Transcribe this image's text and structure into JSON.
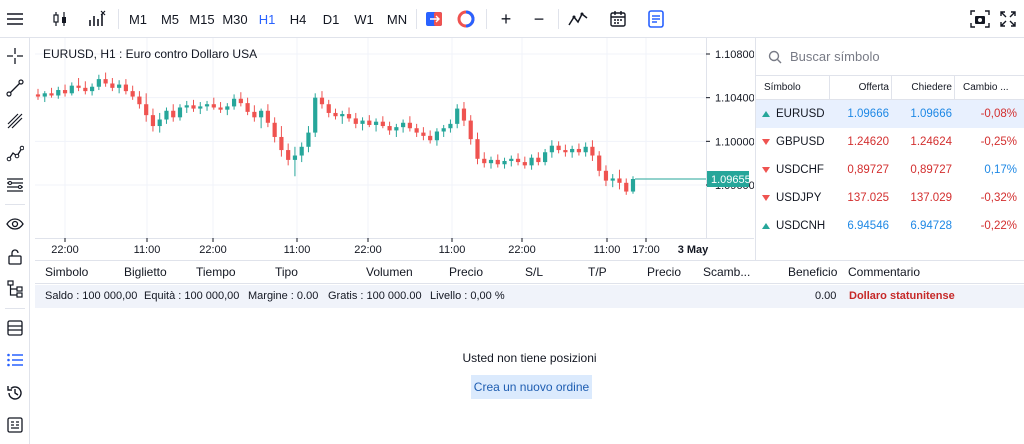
{
  "toolbar": {
    "timeframes": [
      "M1",
      "M5",
      "M15",
      "M30",
      "H1",
      "H4",
      "D1",
      "W1",
      "MN"
    ],
    "active_timeframe": "H1",
    "zoom_in": "+",
    "zoom_out": "−"
  },
  "chart": {
    "title": "EURUSD, H1 : Euro contro Dollaro USA",
    "price_labels": [
      "1.10800",
      "1.10400",
      "1.10000",
      "1.09600"
    ],
    "current_price": "1.09655",
    "time_labels": [
      "22:00",
      "11:00",
      "22:00",
      "11:00",
      "22:00",
      "11:00",
      "22:00",
      "11:00",
      "17:00",
      "3 May"
    ],
    "colors": {
      "up": "#26a69a",
      "down": "#ef5350",
      "last_price": "#26a69a"
    }
  },
  "chart_data": {
    "type": "candlestick",
    "symbol": "EURUSD",
    "timeframe": "H1",
    "title": "EURUSD, H1 : Euro contro Dollaro USA",
    "y_ticks": [
      1.108,
      1.104,
      1.1,
      1.096
    ],
    "x_ticks": [
      "22:00",
      "11:00",
      "22:00",
      "11:00",
      "22:00",
      "11:00",
      "22:00",
      "11:00",
      "17:00",
      "3 May"
    ],
    "last_price": 1.09655,
    "ohlc": [
      [
        1.1043,
        1.1048,
        1.1038,
        1.1041
      ],
      [
        1.1041,
        1.1046,
        1.1036,
        1.1044
      ],
      [
        1.1044,
        1.1049,
        1.104,
        1.1042
      ],
      [
        1.1042,
        1.105,
        1.1039,
        1.1047
      ],
      [
        1.1047,
        1.1052,
        1.1041,
        1.1044
      ],
      [
        1.1044,
        1.1054,
        1.1042,
        1.1051
      ],
      [
        1.1051,
        1.1058,
        1.1046,
        1.1049
      ],
      [
        1.1049,
        1.1055,
        1.1043,
        1.1046
      ],
      [
        1.1046,
        1.1053,
        1.1042,
        1.105
      ],
      [
        1.105,
        1.1061,
        1.1047,
        1.1057
      ],
      [
        1.1057,
        1.1063,
        1.105,
        1.1053
      ],
      [
        1.1053,
        1.1058,
        1.1046,
        1.1049
      ],
      [
        1.1049,
        1.1056,
        1.1044,
        1.1052
      ],
      [
        1.1052,
        1.1057,
        1.1043,
        1.1046
      ],
      [
        1.1046,
        1.1051,
        1.1038,
        1.1041
      ],
      [
        1.1041,
        1.1046,
        1.103,
        1.1034
      ],
      [
        1.1034,
        1.1044,
        1.1018,
        1.1024
      ],
      [
        1.1024,
        1.103,
        1.1009,
        1.1014
      ],
      [
        1.1014,
        1.1026,
        1.1008,
        1.102
      ],
      [
        1.102,
        1.1031,
        1.1016,
        1.1028
      ],
      [
        1.1028,
        1.1034,
        1.1018,
        1.1022
      ],
      [
        1.1022,
        1.1034,
        1.1019,
        1.1031
      ],
      [
        1.1031,
        1.1037,
        1.1026,
        1.1033
      ],
      [
        1.1033,
        1.1038,
        1.1027,
        1.103
      ],
      [
        1.103,
        1.1036,
        1.1025,
        1.1032
      ],
      [
        1.1032,
        1.1037,
        1.1028,
        1.1034
      ],
      [
        1.1034,
        1.104,
        1.1029,
        1.1031
      ],
      [
        1.1031,
        1.1036,
        1.1026,
        1.1029
      ],
      [
        1.1029,
        1.1035,
        1.1024,
        1.1032
      ],
      [
        1.1032,
        1.1043,
        1.1029,
        1.1039
      ],
      [
        1.1039,
        1.1045,
        1.1032,
        1.1035
      ],
      [
        1.1035,
        1.104,
        1.1024,
        1.1027
      ],
      [
        1.1027,
        1.1033,
        1.1018,
        1.1022
      ],
      [
        1.1022,
        1.103,
        1.1012,
        1.1028
      ],
      [
        1.1028,
        1.1034,
        1.1013,
        1.1017
      ],
      [
        1.1017,
        1.1022,
        1.0999,
        1.1004
      ],
      [
        1.1004,
        1.1014,
        1.0986,
        1.0992
      ],
      [
        1.0992,
        1.0998,
        1.0978,
        1.0983
      ],
      [
        1.0983,
        1.0995,
        1.0968,
        1.0987
      ],
      [
        1.0987,
        1.0999,
        1.0981,
        1.0995
      ],
      [
        1.0995,
        1.1014,
        1.099,
        1.1008
      ],
      [
        1.1008,
        1.1044,
        1.1004,
        1.104
      ],
      [
        1.104,
        1.1046,
        1.103,
        1.1034
      ],
      [
        1.1034,
        1.1038,
        1.1022,
        1.1026
      ],
      [
        1.1026,
        1.103,
        1.102,
        1.1023
      ],
      [
        1.1023,
        1.1028,
        1.1016,
        1.1025
      ],
      [
        1.1025,
        1.1031,
        1.1018,
        1.1021
      ],
      [
        1.1021,
        1.1026,
        1.1012,
        1.1016
      ],
      [
        1.1016,
        1.1022,
        1.101,
        1.1019
      ],
      [
        1.1019,
        1.1024,
        1.1013,
        1.1015
      ],
      [
        1.1015,
        1.1021,
        1.1009,
        1.1018
      ],
      [
        1.1018,
        1.1023,
        1.1012,
        1.1014
      ],
      [
        1.1014,
        1.1018,
        1.1006,
        1.101
      ],
      [
        1.101,
        1.1016,
        1.1004,
        1.1013
      ],
      [
        1.1013,
        1.102,
        1.1008,
        1.1017
      ],
      [
        1.1017,
        1.1023,
        1.1009,
        1.1012
      ],
      [
        1.1012,
        1.1016,
        1.1004,
        1.1008
      ],
      [
        1.1008,
        1.1013,
        1.1001,
        1.1005
      ],
      [
        1.1005,
        1.101,
        1.0998,
        1.1001
      ],
      [
        1.1001,
        1.1012,
        1.0996,
        1.1009
      ],
      [
        1.1009,
        1.1015,
        1.1004,
        1.1012
      ],
      [
        1.1012,
        1.102,
        1.1008,
        1.1016
      ],
      [
        1.1016,
        1.1034,
        1.1012,
        1.103
      ],
      [
        1.103,
        1.1036,
        1.1014,
        1.1019
      ],
      [
        1.1019,
        1.1024,
        1.0997,
        1.1002
      ],
      [
        1.1002,
        1.1008,
        1.0979,
        1.0984
      ],
      [
        1.0984,
        1.099,
        1.0976,
        1.098
      ],
      [
        1.098,
        1.0986,
        1.0975,
        1.0983
      ],
      [
        1.0983,
        1.0988,
        1.0976,
        1.0979
      ],
      [
        1.0979,
        1.0985,
        1.0975,
        1.0982
      ],
      [
        1.0982,
        1.0987,
        1.0977,
        1.0984
      ],
      [
        1.0984,
        1.0989,
        1.0978,
        1.0981
      ],
      [
        1.0981,
        1.0986,
        1.0975,
        1.0978
      ],
      [
        1.0978,
        1.0988,
        1.0974,
        1.0985
      ],
      [
        1.0985,
        1.099,
        1.0978,
        1.0981
      ],
      [
        1.0981,
        1.0993,
        1.0978,
        1.099
      ],
      [
        1.099,
        1.1001,
        1.0985,
        1.0996
      ],
      [
        1.0996,
        1.1,
        1.0989,
        1.0992
      ],
      [
        1.0992,
        1.0997,
        1.0986,
        1.099
      ],
      [
        1.099,
        1.0996,
        1.0985,
        1.0993
      ],
      [
        1.0993,
        1.0998,
        1.0987,
        1.099
      ],
      [
        1.099,
        1.0999,
        1.0986,
        1.0995
      ],
      [
        1.0995,
        1.1001,
        1.0982,
        1.0987
      ],
      [
        1.0987,
        1.0991,
        1.0968,
        1.0973
      ],
      [
        1.0973,
        1.0978,
        1.0959,
        1.0964
      ],
      [
        1.0964,
        1.097,
        1.0958,
        1.0966
      ],
      [
        1.0966,
        1.0974,
        1.0956,
        1.0962
      ],
      [
        1.0962,
        1.0966,
        1.0951,
        1.0954
      ],
      [
        1.0954,
        1.0968,
        1.0952,
        1.09655
      ]
    ]
  },
  "watchlist": {
    "search_placeholder": "Buscar símbolo",
    "columns": [
      "Símbolo",
      "Offerta",
      "Chiedere",
      "Cambio ..."
    ],
    "rows": [
      {
        "symbol": "EURUSD",
        "bid": "1.09666",
        "ask": "1.09666",
        "change": "-0,08%",
        "dir": "up"
      },
      {
        "symbol": "GBPUSD",
        "bid": "1.24620",
        "ask": "1.24624",
        "change": "-0,25%",
        "dir": "down"
      },
      {
        "symbol": "USDCHF",
        "bid": "0,89727",
        "ask": "0,89727",
        "change": "0,17%",
        "dir": "down"
      },
      {
        "symbol": "USDJPY",
        "bid": "137.025",
        "ask": "137.029",
        "change": "-0,32%",
        "dir": "down"
      },
      {
        "symbol": "USDCNH",
        "bid": "6.94546",
        "ask": "6.94728",
        "change": "-0,22%",
        "dir": "up"
      }
    ],
    "colors": {
      "up": "#1e88e5",
      "down": "#d32f2f",
      "selected_bg": "#e8f0fe"
    }
  },
  "positions": {
    "columns": [
      "Simbolo",
      "Biglietto",
      "Tiempo",
      "Tipo",
      "Volumen",
      "Precio",
      "S/L",
      "T/P",
      "Precio",
      "Scamb...",
      "Beneficio",
      "Commentario"
    ],
    "balance_items": [
      "Saldo : 100 000,00",
      "Equità : 100 000,00",
      "Margine : 0.00",
      "Gratis : 100 000.00",
      "Livello : 0,00 %"
    ],
    "balance_profit": "0.00",
    "balance_comment": "Dollaro statunitense",
    "empty_message": "Usted non tiene posizioni",
    "new_order_label": "Crea un nuovo ordine"
  }
}
